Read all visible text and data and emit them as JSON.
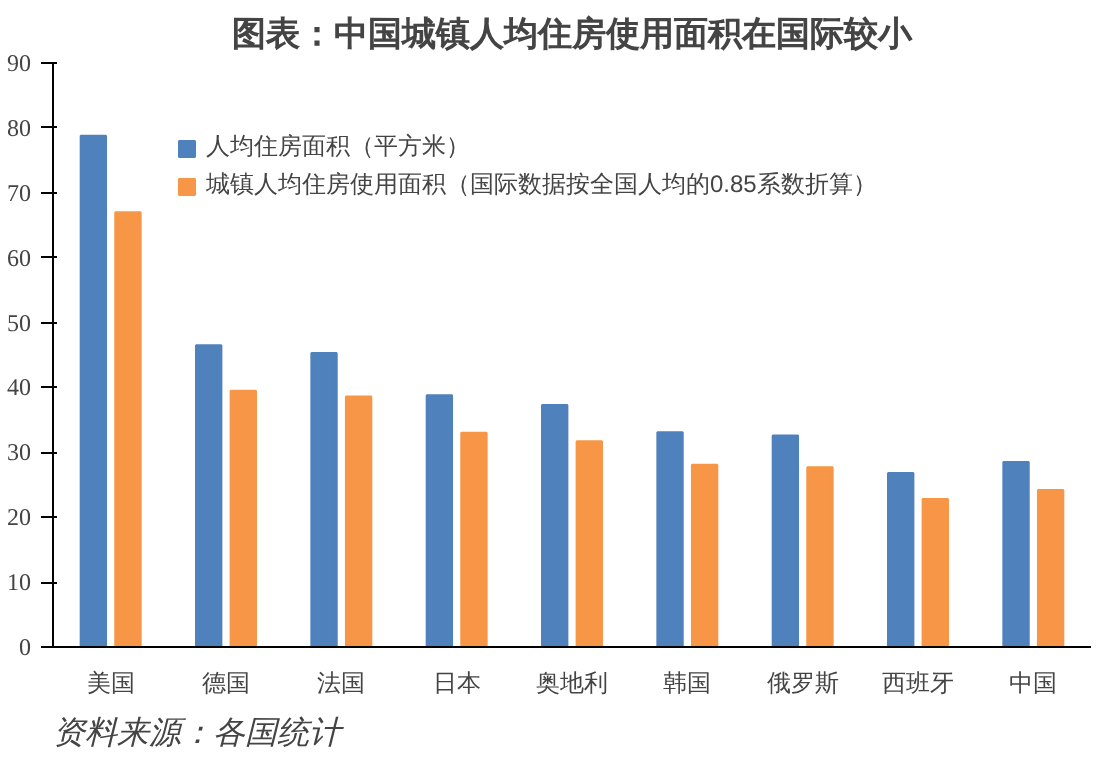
{
  "chart_data": {
    "type": "bar",
    "title": "图表：中国城镇人均住房使用面积在国际较小",
    "categories": [
      "美国",
      "德国",
      "法国",
      "日本",
      "奥地利",
      "韩国",
      "俄罗斯",
      "西班牙",
      "中国"
    ],
    "series": [
      {
        "name": "人均住房面积（平方米）",
        "color": "#4f81bd",
        "values": [
          78.8,
          46.5,
          45.3,
          38.8,
          37.3,
          33.1,
          32.6,
          26.8,
          28.5
        ]
      },
      {
        "name": "城镇人均住房使用面积（国际数据按全国人均的0.85系数折算）",
        "color": "#f79646",
        "values": [
          67.0,
          39.5,
          38.6,
          33.0,
          31.7,
          28.1,
          27.7,
          22.8,
          24.2
        ]
      }
    ],
    "ylim": [
      0,
      90
    ],
    "yticks": [
      0,
      10,
      20,
      30,
      40,
      50,
      60,
      70,
      80,
      90
    ],
    "grid": false,
    "legend": "top left",
    "annotations": [
      "资料来源：各国统计"
    ]
  }
}
